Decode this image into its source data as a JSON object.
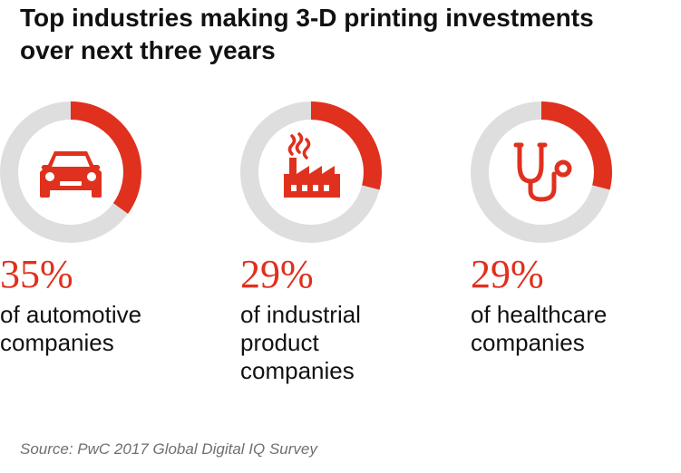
{
  "title_lines": [
    "Top industries making 3-D printing investments",
    "over next three years"
  ],
  "source": "Source: PwC 2017 Global Digital IQ Survey",
  "colors": {
    "accent": "#e0301e",
    "track": "#dedede",
    "text": "#111111",
    "muted": "#707070"
  },
  "chart_data": {
    "type": "pie",
    "title": "Top industries making 3-D printing investments over next three years",
    "items": [
      {
        "value": 35,
        "value_label": "35%",
        "desc_lines": [
          "of automotive",
          "companies"
        ],
        "icon": "car-icon"
      },
      {
        "value": 29,
        "value_label": "29%",
        "desc_lines": [
          "of industrial",
          "product",
          "companies"
        ],
        "icon": "factory-icon"
      },
      {
        "value": 29,
        "value_label": "29%",
        "desc_lines": [
          "of healthcare",
          "companies"
        ],
        "icon": "stethoscope-icon"
      }
    ]
  }
}
